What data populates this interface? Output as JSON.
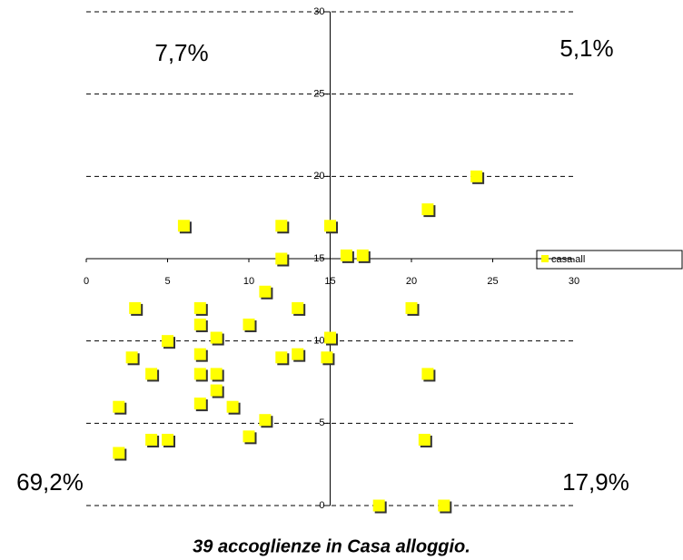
{
  "chart_data": {
    "type": "scatter",
    "title": "39 accoglienze in Casa alloggio.",
    "series": [
      {
        "name": "casa all",
        "color": "#ffff00",
        "x": [
          24,
          21,
          6,
          12,
          15,
          12,
          16,
          17,
          11,
          3,
          7,
          13,
          20,
          7,
          10,
          5,
          8,
          15,
          2.8,
          7,
          12,
          13,
          14.8,
          4,
          7,
          8,
          21,
          8,
          7,
          9,
          2,
          11,
          4,
          5,
          10,
          20.8,
          2,
          18,
          22
        ],
        "values": [
          20,
          18,
          17,
          17,
          17,
          15,
          15.2,
          15.2,
          13,
          12,
          12,
          12,
          12,
          11,
          11,
          10,
          10.2,
          10.2,
          9,
          9.2,
          9,
          9.2,
          9,
          8,
          8,
          8,
          8,
          7,
          6.2,
          6,
          6,
          5.2,
          4,
          4,
          4.2,
          4,
          3.2,
          0,
          0
        ]
      }
    ],
    "xlim": [
      0,
      30
    ],
    "xticks": [
      0,
      5,
      10,
      15,
      20,
      25,
      30
    ],
    "ylim": [
      0,
      30
    ],
    "yticks": [
      0,
      5,
      10,
      15,
      20,
      25,
      30
    ],
    "axes_cross": {
      "x": 15,
      "y": 15
    },
    "grid": true,
    "annotations": [
      "7,7%",
      "5,1%",
      "69,2%",
      "17,9%"
    ]
  }
}
